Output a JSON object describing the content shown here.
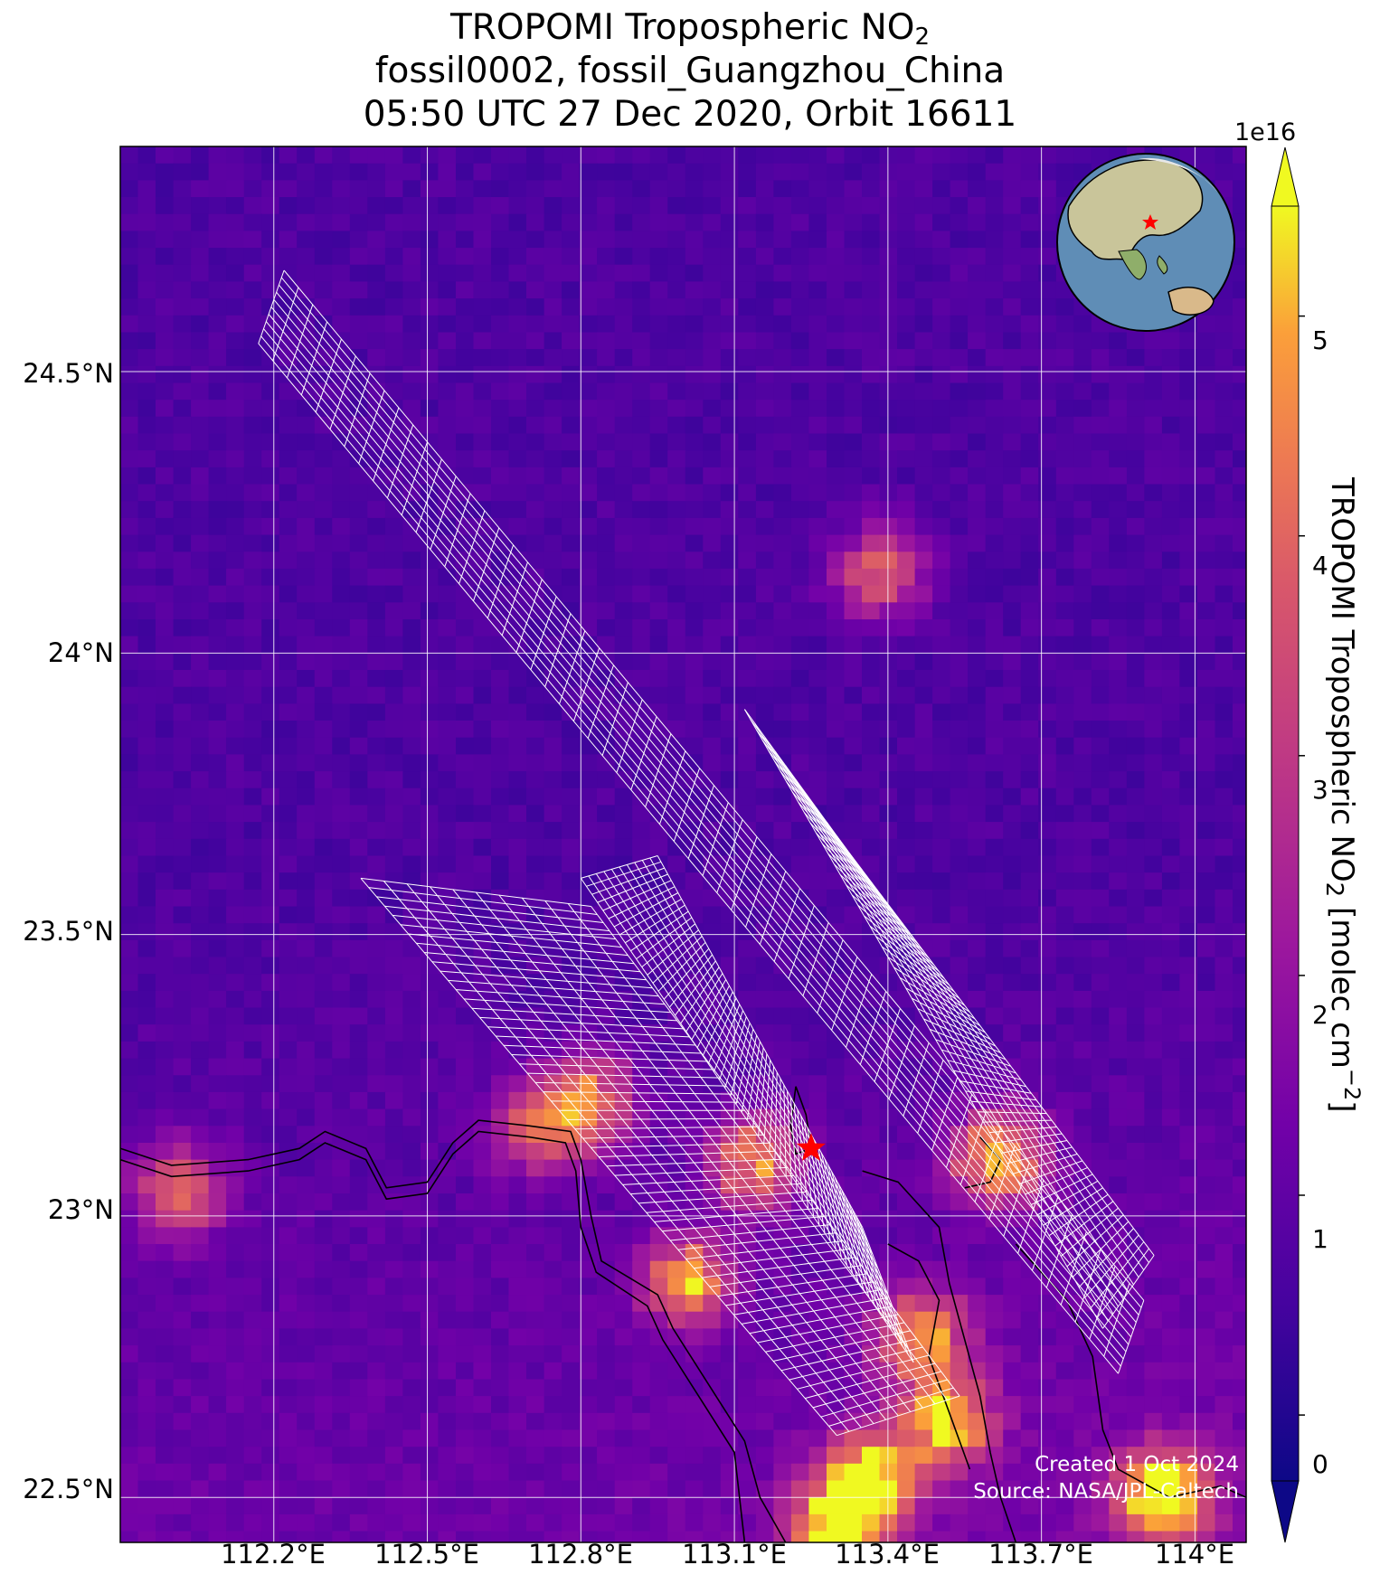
{
  "title": {
    "line1_main": "TROPOMI Tropospheric NO",
    "line1_sub": "2",
    "line2": "fossil0002, fossil_Guangzhou_China",
    "line3": "05:50 UTC 27 Dec 2020, Orbit 16611"
  },
  "colorbar": {
    "exponent": "1e16",
    "label_main": "TROPOMI Tropospheric NO",
    "label_sub": "2",
    "label_unit": " [molec cm",
    "label_sup": "−2",
    "label_end": "]",
    "ticks": [
      "0",
      "1",
      "2",
      "3",
      "4",
      "5"
    ],
    "tick_values": [
      0,
      1,
      2,
      3,
      4,
      5
    ],
    "range": [
      -0.3,
      5.5
    ],
    "colormap": "plasma",
    "extend": "both"
  },
  "credits": {
    "created": "Created 1 Oct 2024",
    "source": "Source: NASA/JPL-Caltech"
  },
  "colors": {
    "grid": "#ffffff",
    "footprint": "#ffffff",
    "coastline": "#000000",
    "target_marker": "#ff0000"
  },
  "chart_data": {
    "type": "heatmap",
    "projection": "map",
    "xlabel": "",
    "ylabel": "",
    "xlim": [
      111.9,
      114.1
    ],
    "ylim": [
      22.42,
      24.9
    ],
    "grid": true,
    "x_ticks": [
      112.2,
      112.5,
      112.8,
      113.1,
      113.4,
      113.7,
      114.0
    ],
    "x_tick_labels": [
      "112.2°E",
      "112.5°E",
      "112.8°E",
      "113.1°E",
      "113.4°E",
      "113.7°E",
      "114°E"
    ],
    "y_ticks": [
      24.5,
      24.0,
      23.5,
      23.0,
      22.5
    ],
    "y_tick_labels": [
      "24.5°N",
      "24°N",
      "23.5°N",
      "23°N",
      "22.5°N"
    ],
    "units": "molec cm^-2 (x1e16)",
    "target": {
      "name": "fossil_Guangzhou_China",
      "lon": 113.25,
      "lat": 23.12
    },
    "hotspots": [
      {
        "lon": 113.35,
        "lat": 22.55,
        "value": 4.8
      },
      {
        "lon": 113.28,
        "lat": 22.45,
        "value": 5.0
      },
      {
        "lon": 113.5,
        "lat": 22.65,
        "value": 4.2
      },
      {
        "lon": 113.45,
        "lat": 22.8,
        "value": 3.8
      },
      {
        "lon": 113.6,
        "lat": 23.12,
        "value": 4.5
      },
      {
        "lon": 113.12,
        "lat": 23.11,
        "value": 3.6
      },
      {
        "lon": 112.99,
        "lat": 22.9,
        "value": 3.8
      },
      {
        "lon": 112.8,
        "lat": 23.22,
        "value": 3.4
      },
      {
        "lon": 112.7,
        "lat": 23.17,
        "value": 3.0
      },
      {
        "lon": 113.92,
        "lat": 22.52,
        "value": 5.3
      },
      {
        "lon": 113.37,
        "lat": 24.16,
        "value": 3.2
      },
      {
        "lon": 112.0,
        "lat": 23.06,
        "value": 3.0
      }
    ],
    "footprints": [
      {
        "name": "swath-1",
        "corners": [
          [
            112.17,
            24.55
          ],
          [
            112.22,
            24.68
          ],
          [
            113.9,
            22.85
          ],
          [
            113.85,
            22.72
          ]
        ]
      },
      {
        "name": "swath-2",
        "corners": [
          [
            112.37,
            23.6
          ],
          [
            112.82,
            23.55
          ],
          [
            113.54,
            22.68
          ],
          [
            113.3,
            22.61
          ]
        ]
      },
      {
        "name": "swath-3",
        "corners": [
          [
            112.8,
            23.6
          ],
          [
            112.95,
            23.64
          ],
          [
            113.35,
            22.98
          ],
          [
            113.45,
            22.74
          ]
        ]
      },
      {
        "name": "swath-4",
        "corners": [
          [
            113.12,
            23.9
          ],
          [
            113.32,
            23.65
          ],
          [
            113.92,
            22.93
          ],
          [
            113.82,
            22.8
          ]
        ]
      }
    ]
  },
  "inset": {
    "description_icon": "globe-inset"
  }
}
